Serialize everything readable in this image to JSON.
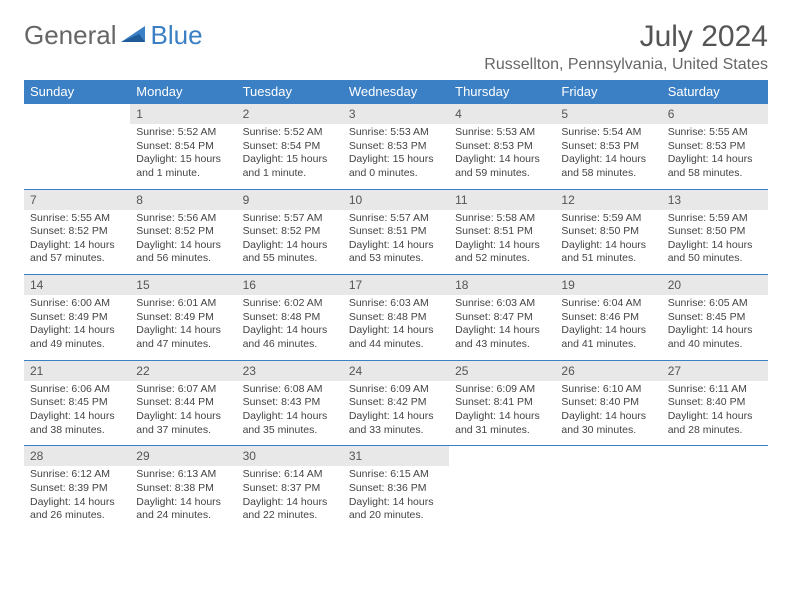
{
  "brand": {
    "part1": "General",
    "part2": "Blue"
  },
  "title": "July 2024",
  "location": "Russellton, Pennsylvania, United States",
  "colors": {
    "header_bg": "#3b7fc4",
    "header_text": "#ffffff",
    "daynum_bg": "#e8e8e8",
    "text": "#444444",
    "rule": "#3b7fc4"
  },
  "dow": [
    "Sunday",
    "Monday",
    "Tuesday",
    "Wednesday",
    "Thursday",
    "Friday",
    "Saturday"
  ],
  "weeks": [
    [
      null,
      {
        "n": "1",
        "sr": "Sunrise: 5:52 AM",
        "ss": "Sunset: 8:54 PM",
        "d1": "Daylight: 15 hours",
        "d2": "and 1 minute."
      },
      {
        "n": "2",
        "sr": "Sunrise: 5:52 AM",
        "ss": "Sunset: 8:54 PM",
        "d1": "Daylight: 15 hours",
        "d2": "and 1 minute."
      },
      {
        "n": "3",
        "sr": "Sunrise: 5:53 AM",
        "ss": "Sunset: 8:53 PM",
        "d1": "Daylight: 15 hours",
        "d2": "and 0 minutes."
      },
      {
        "n": "4",
        "sr": "Sunrise: 5:53 AM",
        "ss": "Sunset: 8:53 PM",
        "d1": "Daylight: 14 hours",
        "d2": "and 59 minutes."
      },
      {
        "n": "5",
        "sr": "Sunrise: 5:54 AM",
        "ss": "Sunset: 8:53 PM",
        "d1": "Daylight: 14 hours",
        "d2": "and 58 minutes."
      },
      {
        "n": "6",
        "sr": "Sunrise: 5:55 AM",
        "ss": "Sunset: 8:53 PM",
        "d1": "Daylight: 14 hours",
        "d2": "and 58 minutes."
      }
    ],
    [
      {
        "n": "7",
        "sr": "Sunrise: 5:55 AM",
        "ss": "Sunset: 8:52 PM",
        "d1": "Daylight: 14 hours",
        "d2": "and 57 minutes."
      },
      {
        "n": "8",
        "sr": "Sunrise: 5:56 AM",
        "ss": "Sunset: 8:52 PM",
        "d1": "Daylight: 14 hours",
        "d2": "and 56 minutes."
      },
      {
        "n": "9",
        "sr": "Sunrise: 5:57 AM",
        "ss": "Sunset: 8:52 PM",
        "d1": "Daylight: 14 hours",
        "d2": "and 55 minutes."
      },
      {
        "n": "10",
        "sr": "Sunrise: 5:57 AM",
        "ss": "Sunset: 8:51 PM",
        "d1": "Daylight: 14 hours",
        "d2": "and 53 minutes."
      },
      {
        "n": "11",
        "sr": "Sunrise: 5:58 AM",
        "ss": "Sunset: 8:51 PM",
        "d1": "Daylight: 14 hours",
        "d2": "and 52 minutes."
      },
      {
        "n": "12",
        "sr": "Sunrise: 5:59 AM",
        "ss": "Sunset: 8:50 PM",
        "d1": "Daylight: 14 hours",
        "d2": "and 51 minutes."
      },
      {
        "n": "13",
        "sr": "Sunrise: 5:59 AM",
        "ss": "Sunset: 8:50 PM",
        "d1": "Daylight: 14 hours",
        "d2": "and 50 minutes."
      }
    ],
    [
      {
        "n": "14",
        "sr": "Sunrise: 6:00 AM",
        "ss": "Sunset: 8:49 PM",
        "d1": "Daylight: 14 hours",
        "d2": "and 49 minutes."
      },
      {
        "n": "15",
        "sr": "Sunrise: 6:01 AM",
        "ss": "Sunset: 8:49 PM",
        "d1": "Daylight: 14 hours",
        "d2": "and 47 minutes."
      },
      {
        "n": "16",
        "sr": "Sunrise: 6:02 AM",
        "ss": "Sunset: 8:48 PM",
        "d1": "Daylight: 14 hours",
        "d2": "and 46 minutes."
      },
      {
        "n": "17",
        "sr": "Sunrise: 6:03 AM",
        "ss": "Sunset: 8:48 PM",
        "d1": "Daylight: 14 hours",
        "d2": "and 44 minutes."
      },
      {
        "n": "18",
        "sr": "Sunrise: 6:03 AM",
        "ss": "Sunset: 8:47 PM",
        "d1": "Daylight: 14 hours",
        "d2": "and 43 minutes."
      },
      {
        "n": "19",
        "sr": "Sunrise: 6:04 AM",
        "ss": "Sunset: 8:46 PM",
        "d1": "Daylight: 14 hours",
        "d2": "and 41 minutes."
      },
      {
        "n": "20",
        "sr": "Sunrise: 6:05 AM",
        "ss": "Sunset: 8:45 PM",
        "d1": "Daylight: 14 hours",
        "d2": "and 40 minutes."
      }
    ],
    [
      {
        "n": "21",
        "sr": "Sunrise: 6:06 AM",
        "ss": "Sunset: 8:45 PM",
        "d1": "Daylight: 14 hours",
        "d2": "and 38 minutes."
      },
      {
        "n": "22",
        "sr": "Sunrise: 6:07 AM",
        "ss": "Sunset: 8:44 PM",
        "d1": "Daylight: 14 hours",
        "d2": "and 37 minutes."
      },
      {
        "n": "23",
        "sr": "Sunrise: 6:08 AM",
        "ss": "Sunset: 8:43 PM",
        "d1": "Daylight: 14 hours",
        "d2": "and 35 minutes."
      },
      {
        "n": "24",
        "sr": "Sunrise: 6:09 AM",
        "ss": "Sunset: 8:42 PM",
        "d1": "Daylight: 14 hours",
        "d2": "and 33 minutes."
      },
      {
        "n": "25",
        "sr": "Sunrise: 6:09 AM",
        "ss": "Sunset: 8:41 PM",
        "d1": "Daylight: 14 hours",
        "d2": "and 31 minutes."
      },
      {
        "n": "26",
        "sr": "Sunrise: 6:10 AM",
        "ss": "Sunset: 8:40 PM",
        "d1": "Daylight: 14 hours",
        "d2": "and 30 minutes."
      },
      {
        "n": "27",
        "sr": "Sunrise: 6:11 AM",
        "ss": "Sunset: 8:40 PM",
        "d1": "Daylight: 14 hours",
        "d2": "and 28 minutes."
      }
    ],
    [
      {
        "n": "28",
        "sr": "Sunrise: 6:12 AM",
        "ss": "Sunset: 8:39 PM",
        "d1": "Daylight: 14 hours",
        "d2": "and 26 minutes."
      },
      {
        "n": "29",
        "sr": "Sunrise: 6:13 AM",
        "ss": "Sunset: 8:38 PM",
        "d1": "Daylight: 14 hours",
        "d2": "and 24 minutes."
      },
      {
        "n": "30",
        "sr": "Sunrise: 6:14 AM",
        "ss": "Sunset: 8:37 PM",
        "d1": "Daylight: 14 hours",
        "d2": "and 22 minutes."
      },
      {
        "n": "31",
        "sr": "Sunrise: 6:15 AM",
        "ss": "Sunset: 8:36 PM",
        "d1": "Daylight: 14 hours",
        "d2": "and 20 minutes."
      },
      null,
      null,
      null
    ]
  ]
}
